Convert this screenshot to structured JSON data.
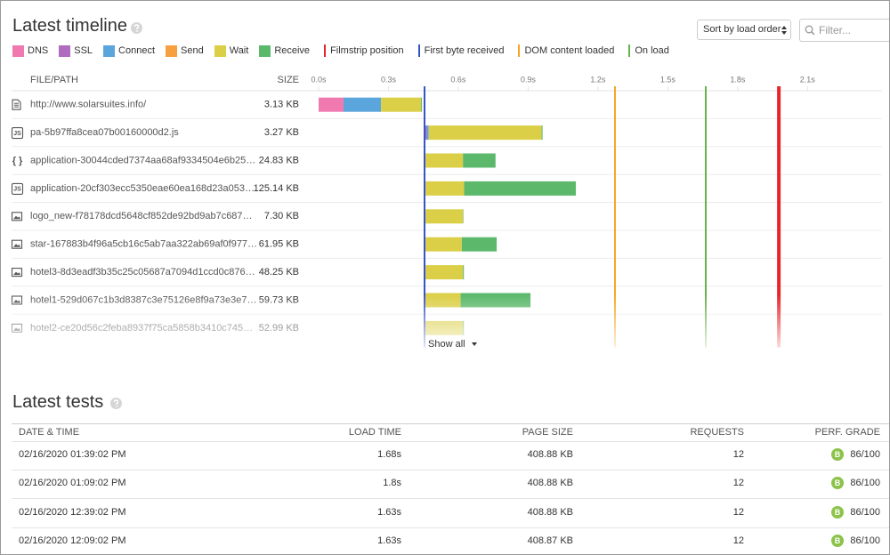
{
  "timeline": {
    "title": "Latest timeline",
    "sort_label": "Sort by load order",
    "filter_placeholder": "Filter...",
    "phases": [
      {
        "name": "DNS",
        "color": "#f07ab0"
      },
      {
        "name": "SSL",
        "color": "#b06cbf"
      },
      {
        "name": "Connect",
        "color": "#5aa5db"
      },
      {
        "name": "Send",
        "color": "#f7a040"
      },
      {
        "name": "Wait",
        "color": "#dccf48"
      },
      {
        "name": "Receive",
        "color": "#5cb96b"
      }
    ],
    "markers": [
      {
        "name": "Filmstrip position",
        "color": "#e8242b",
        "value": 1.977
      },
      {
        "name": "First byte received",
        "color": "#3355c4",
        "value": 0.455
      },
      {
        "name": "DOM content loaded",
        "color": "#f5a623",
        "value": 1.273
      },
      {
        "name": "On load",
        "color": "#6ab04c",
        "value": 1.663
      }
    ],
    "columns": {
      "path": "FILE/PATH",
      "size": "SIZE"
    },
    "xlim": [
      0,
      2.42
    ],
    "xticks": [
      {
        "value": 0,
        "label": "0.0s"
      },
      {
        "value": 0.3,
        "label": "0.3s"
      },
      {
        "value": 0.6,
        "label": "0.6s"
      },
      {
        "value": 0.9,
        "label": "0.9s"
      },
      {
        "value": 1.2,
        "label": "1.2s"
      },
      {
        "value": 1.5,
        "label": "1.5s"
      },
      {
        "value": 1.8,
        "label": "1.8s"
      },
      {
        "value": 2.1,
        "label": "2.1s"
      }
    ],
    "requests": [
      {
        "icon": "document",
        "path": "http://www.solarsuites.info/",
        "size": "3.13 KB",
        "start": 0,
        "timings": [
          0.107,
          0,
          0.161,
          0,
          0.172,
          0.004
        ]
      },
      {
        "icon": "js",
        "icon_label": "JS",
        "path": "pa-5b97ffa8cea07b00160000d2.js",
        "size": "3.27 KB",
        "start": 0.455,
        "timings": [
          0,
          0.01,
          0.008,
          0,
          0.485,
          0.004
        ]
      },
      {
        "icon": "json",
        "icon_label": "{ }",
        "path": "application-30044cded7374aa68af9334504e6b25…",
        "size": "24.83 KB",
        "start": 0.455,
        "timings": [
          0,
          0,
          0,
          0.005,
          0.16,
          0.14
        ]
      },
      {
        "icon": "js",
        "icon_label": "JS",
        "path": "application-20cf303ecc5350eae60ea168d23a053…",
        "size": "125.14 KB",
        "start": 0.455,
        "timings": [
          0,
          0,
          0,
          0.005,
          0.165,
          0.48
        ]
      },
      {
        "icon": "image",
        "path": "logo_new-f78178dcd5648cf852de92bd9ab7c687…",
        "size": "7.30 KB",
        "start": 0.455,
        "timings": [
          0,
          0,
          0,
          0.005,
          0.16,
          0.002
        ]
      },
      {
        "icon": "image",
        "path": "star-167883b4f96a5cb16c5ab7aa322ab69af0f977…",
        "size": "61.95 KB",
        "start": 0.455,
        "timings": [
          0,
          0,
          0,
          0.005,
          0.155,
          0.15
        ]
      },
      {
        "icon": "image",
        "path": "hotel3-8d3eadf3b35c25c05687a7094d1ccd0c876…",
        "size": "48.25 KB",
        "start": 0.455,
        "timings": [
          0,
          0,
          0,
          0.005,
          0.16,
          0.004
        ]
      },
      {
        "icon": "image",
        "path": "hotel1-529d067c1b3d8387c3e75126e8f9a73e3e7…",
        "size": "59.73 KB",
        "start": 0.455,
        "timings": [
          0,
          0,
          0,
          0.005,
          0.15,
          0.3
        ]
      },
      {
        "icon": "image",
        "path": "hotel2-ce20d56c2feba8937f75ca5858b3410c745…",
        "size": "52.99 KB",
        "start": 0.455,
        "timings": [
          0,
          0,
          0,
          0.005,
          0.16,
          0.004
        ]
      }
    ],
    "show_all": "Show all"
  },
  "tests": {
    "title": "Latest tests",
    "columns": [
      "DATE & TIME",
      "LOAD TIME",
      "PAGE SIZE",
      "REQUESTS",
      "PERF. GRADE"
    ],
    "rows": [
      {
        "date": "02/16/2020 01:39:02 PM",
        "load_time": "1.68s",
        "page_size": "408.88 KB",
        "requests": "12",
        "grade": "B",
        "score": "86/100"
      },
      {
        "date": "02/16/2020 01:09:02 PM",
        "load_time": "1.8s",
        "page_size": "408.88 KB",
        "requests": "12",
        "grade": "B",
        "score": "86/100"
      },
      {
        "date": "02/16/2020 12:39:02 PM",
        "load_time": "1.63s",
        "page_size": "408.88 KB",
        "requests": "12",
        "grade": "B",
        "score": "86/100"
      },
      {
        "date": "02/16/2020 12:09:02 PM",
        "load_time": "1.63s",
        "page_size": "408.87 KB",
        "requests": "12",
        "grade": "B",
        "score": "86/100"
      }
    ]
  }
}
